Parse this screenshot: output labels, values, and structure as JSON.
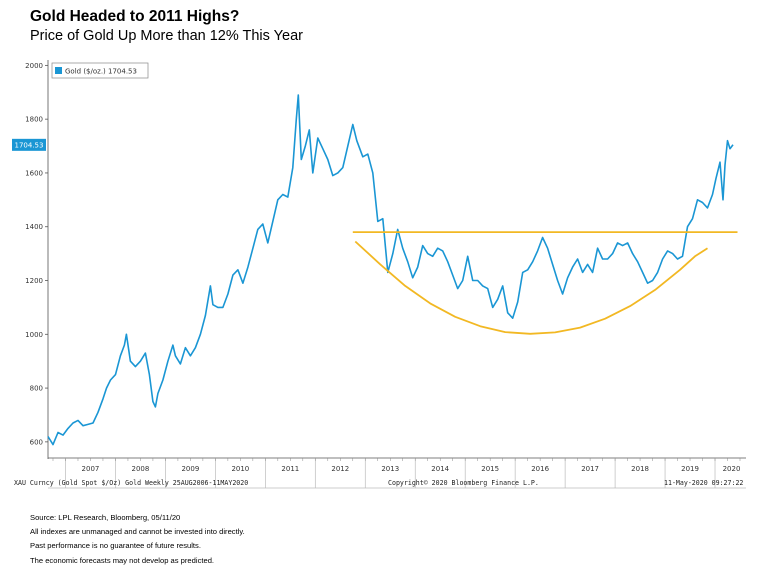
{
  "header": {
    "title": "Gold Headed to 2011 Highs?",
    "subtitle": "Price of Gold Up More than 12% This Year"
  },
  "chart_data": {
    "type": "line",
    "title": "Gold Headed to 2011 Highs?",
    "subtitle": "Price of Gold Up More than 12% This Year",
    "x_unit": "year",
    "xlim": [
      2006.65,
      2020.36
    ],
    "ylim": [
      540,
      2020
    ],
    "y_ticks": [
      600,
      800,
      1000,
      1200,
      1400,
      1600,
      1800,
      2000
    ],
    "x_ticks": [
      "2007",
      "2008",
      "2009",
      "2010",
      "2011",
      "2012",
      "2013",
      "2014",
      "2015",
      "2016",
      "2017",
      "2018",
      "2019",
      "2020"
    ],
    "grid": false,
    "legend": {
      "position": "top-left",
      "label": "Gold ($/oz.)",
      "value": "1704.53",
      "color": "#1a96d4"
    },
    "last_value_label": "1704.53",
    "series": [
      {
        "name": "Gold ($/oz.)",
        "color": "#1a96d4",
        "points": [
          [
            2006.65,
            620
          ],
          [
            2006.75,
            590
          ],
          [
            2006.85,
            635
          ],
          [
            2006.95,
            625
          ],
          [
            2007.05,
            650
          ],
          [
            2007.15,
            670
          ],
          [
            2007.25,
            680
          ],
          [
            2007.35,
            660
          ],
          [
            2007.45,
            665
          ],
          [
            2007.55,
            670
          ],
          [
            2007.65,
            710
          ],
          [
            2007.75,
            760
          ],
          [
            2007.82,
            800
          ],
          [
            2007.9,
            830
          ],
          [
            2008.0,
            850
          ],
          [
            2008.1,
            920
          ],
          [
            2008.18,
            960
          ],
          [
            2008.22,
            1000
          ],
          [
            2008.3,
            900
          ],
          [
            2008.4,
            880
          ],
          [
            2008.5,
            900
          ],
          [
            2008.6,
            930
          ],
          [
            2008.68,
            850
          ],
          [
            2008.75,
            750
          ],
          [
            2008.8,
            730
          ],
          [
            2008.85,
            780
          ],
          [
            2008.95,
            830
          ],
          [
            2009.05,
            900
          ],
          [
            2009.15,
            960
          ],
          [
            2009.2,
            920
          ],
          [
            2009.3,
            890
          ],
          [
            2009.4,
            950
          ],
          [
            2009.5,
            920
          ],
          [
            2009.6,
            950
          ],
          [
            2009.7,
            1000
          ],
          [
            2009.8,
            1070
          ],
          [
            2009.9,
            1180
          ],
          [
            2009.95,
            1110
          ],
          [
            2010.05,
            1100
          ],
          [
            2010.15,
            1100
          ],
          [
            2010.25,
            1150
          ],
          [
            2010.35,
            1220
          ],
          [
            2010.45,
            1240
          ],
          [
            2010.55,
            1190
          ],
          [
            2010.65,
            1250
          ],
          [
            2010.75,
            1320
          ],
          [
            2010.85,
            1390
          ],
          [
            2010.95,
            1410
          ],
          [
            2011.05,
            1340
          ],
          [
            2011.15,
            1420
          ],
          [
            2011.25,
            1500
          ],
          [
            2011.35,
            1520
          ],
          [
            2011.45,
            1510
          ],
          [
            2011.55,
            1620
          ],
          [
            2011.62,
            1800
          ],
          [
            2011.66,
            1890
          ],
          [
            2011.72,
            1650
          ],
          [
            2011.8,
            1700
          ],
          [
            2011.88,
            1760
          ],
          [
            2011.95,
            1600
          ],
          [
            2012.05,
            1730
          ],
          [
            2012.15,
            1690
          ],
          [
            2012.25,
            1650
          ],
          [
            2012.35,
            1590
          ],
          [
            2012.45,
            1600
          ],
          [
            2012.55,
            1620
          ],
          [
            2012.65,
            1700
          ],
          [
            2012.75,
            1780
          ],
          [
            2012.83,
            1720
          ],
          [
            2012.95,
            1660
          ],
          [
            2013.05,
            1670
          ],
          [
            2013.15,
            1600
          ],
          [
            2013.25,
            1420
          ],
          [
            2013.35,
            1430
          ],
          [
            2013.45,
            1230
          ],
          [
            2013.55,
            1300
          ],
          [
            2013.65,
            1390
          ],
          [
            2013.75,
            1320
          ],
          [
            2013.85,
            1270
          ],
          [
            2013.95,
            1210
          ],
          [
            2014.05,
            1250
          ],
          [
            2014.15,
            1330
          ],
          [
            2014.25,
            1300
          ],
          [
            2014.35,
            1290
          ],
          [
            2014.45,
            1320
          ],
          [
            2014.55,
            1310
          ],
          [
            2014.65,
            1270
          ],
          [
            2014.75,
            1220
          ],
          [
            2014.85,
            1170
          ],
          [
            2014.95,
            1200
          ],
          [
            2015.05,
            1290
          ],
          [
            2015.15,
            1200
          ],
          [
            2015.25,
            1200
          ],
          [
            2015.35,
            1180
          ],
          [
            2015.45,
            1170
          ],
          [
            2015.55,
            1100
          ],
          [
            2015.65,
            1130
          ],
          [
            2015.75,
            1180
          ],
          [
            2015.85,
            1080
          ],
          [
            2015.95,
            1060
          ],
          [
            2016.05,
            1120
          ],
          [
            2016.15,
            1230
          ],
          [
            2016.25,
            1240
          ],
          [
            2016.35,
            1270
          ],
          [
            2016.45,
            1310
          ],
          [
            2016.55,
            1360
          ],
          [
            2016.65,
            1320
          ],
          [
            2016.75,
            1260
          ],
          [
            2016.85,
            1200
          ],
          [
            2016.95,
            1150
          ],
          [
            2017.05,
            1210
          ],
          [
            2017.15,
            1250
          ],
          [
            2017.25,
            1280
          ],
          [
            2017.35,
            1230
          ],
          [
            2017.45,
            1260
          ],
          [
            2017.55,
            1230
          ],
          [
            2017.65,
            1320
          ],
          [
            2017.75,
            1280
          ],
          [
            2017.85,
            1280
          ],
          [
            2017.95,
            1300
          ],
          [
            2018.05,
            1340
          ],
          [
            2018.15,
            1330
          ],
          [
            2018.25,
            1340
          ],
          [
            2018.35,
            1300
          ],
          [
            2018.45,
            1270
          ],
          [
            2018.55,
            1230
          ],
          [
            2018.65,
            1190
          ],
          [
            2018.75,
            1200
          ],
          [
            2018.85,
            1230
          ],
          [
            2018.95,
            1280
          ],
          [
            2019.05,
            1310
          ],
          [
            2019.15,
            1300
          ],
          [
            2019.25,
            1280
          ],
          [
            2019.35,
            1290
          ],
          [
            2019.45,
            1400
          ],
          [
            2019.55,
            1430
          ],
          [
            2019.65,
            1500
          ],
          [
            2019.75,
            1490
          ],
          [
            2019.85,
            1470
          ],
          [
            2019.95,
            1520
          ],
          [
            2020.02,
            1580
          ],
          [
            2020.1,
            1640
          ],
          [
            2020.16,
            1500
          ],
          [
            2020.2,
            1630
          ],
          [
            2020.25,
            1720
          ],
          [
            2020.3,
            1690
          ],
          [
            2020.36,
            1704.53
          ]
        ]
      },
      {
        "name": "",
        "color": "#f2b823",
        "points": [
          [
            2012.75,
            1380
          ],
          [
            2020.45,
            1380
          ]
        ]
      },
      {
        "name": "",
        "color": "#f2b823",
        "points": [
          [
            2012.8,
            1345
          ],
          [
            2013.3,
            1260
          ],
          [
            2013.8,
            1180
          ],
          [
            2014.3,
            1115
          ],
          [
            2014.8,
            1065
          ],
          [
            2015.3,
            1030
          ],
          [
            2015.8,
            1008
          ],
          [
            2016.3,
            1002
          ],
          [
            2016.8,
            1007
          ],
          [
            2017.3,
            1025
          ],
          [
            2017.8,
            1058
          ],
          [
            2018.3,
            1105
          ],
          [
            2018.8,
            1165
          ],
          [
            2019.3,
            1240
          ],
          [
            2019.6,
            1290
          ],
          [
            2019.85,
            1320
          ]
        ]
      }
    ]
  },
  "bloomberg_footer": {
    "left": "XAU Curncy (Gold Spot  $/Oz) Gold  Weekly 25AUG2006-11MAY2020",
    "center": "Copyright© 2020 Bloomberg Finance L.P.",
    "right": "11-May-2020 09:27:22"
  },
  "notes": [
    "Source: LPL Research, Bloomberg, 05/11/20",
    "All indexes are unmanaged and cannot be invested into directly.",
    "Past performance is no guarantee of future results.",
    "The economic forecasts may not develop as predicted."
  ]
}
